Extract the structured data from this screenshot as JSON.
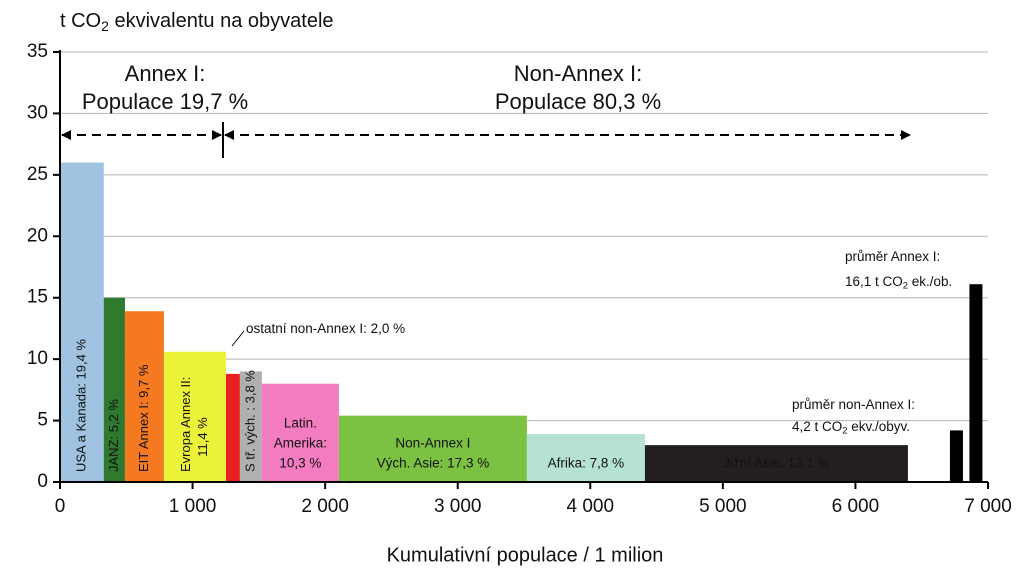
{
  "chart_data": {
    "type": "variwidth-bar",
    "title": [
      {
        "text": "t CO"
      },
      {
        "sub": "2"
      },
      {
        "text": " ekvivalentu na obyvatele"
      }
    ],
    "x_label": "Kumulativní populace / 1 milion",
    "xlim": [
      0,
      7000
    ],
    "ylim": [
      0,
      35
    ],
    "xticks": [
      0,
      {
        "value": 1000,
        "label": "1 000"
      },
      {
        "value": 2000,
        "label": "2 000"
      },
      {
        "value": 3000,
        "label": "3 000"
      },
      {
        "value": 4000,
        "label": "4 000"
      },
      {
        "value": 5000,
        "label": "5 000"
      },
      {
        "value": 6000,
        "label": "6 000"
      },
      {
        "value": 7000,
        "label": "7 000"
      }
    ],
    "yticks": [
      0,
      5,
      10,
      15,
      20,
      25,
      30,
      35
    ],
    "grid": true,
    "bars": [
      {
        "label": [
          "USA a Kanada: 19,4 %"
        ],
        "x": [
          0,
          330
        ],
        "value": 26,
        "color": "#9fc3e0",
        "text_color": "#000000"
      },
      {
        "label": [
          "JANZ: 5,2 %"
        ],
        "x": [
          330,
          490
        ],
        "value": 15,
        "color": "#2f7a2f",
        "text_color": "#ffffff"
      },
      {
        "label": [
          "EIT Annex I: 9,7 %"
        ],
        "x": [
          490,
          784
        ],
        "value": 13.9,
        "color": "#f47920",
        "text_color": "#ffffff"
      },
      {
        "label": [
          "Evropa Annex II:",
          "11,4 %"
        ],
        "x": [
          784,
          1252
        ],
        "value": 10.6,
        "color": "#ecf23a",
        "text_color": "#000000"
      },
      {
        "x": [
          1252,
          1357
        ],
        "value": 8.8,
        "color": "#e8201e"
      },
      {
        "label": [
          "S tř. vých. : 3,8 %"
        ],
        "x": [
          1357,
          1523
        ],
        "value": 9,
        "color": "#b0b0b0",
        "text_color": "#000000"
      },
      {
        "label": [
          "Latin.",
          "Amerika:",
          "10,3 %"
        ],
        "x": [
          1523,
          2104
        ],
        "value": 8,
        "color": "#f47cc0",
        "text_color": "#000000"
      },
      {
        "label": [
          "Non-Annex I",
          "Vých. Asie: 17,3 %"
        ],
        "x": [
          2104,
          3522
        ],
        "value": 5.4,
        "color": "#7cc242",
        "text_color": "#000000"
      },
      {
        "label": [
          "Afrika: 7,8 %"
        ],
        "x": [
          3522,
          4412
        ],
        "value": 3.9,
        "color": "#b6e2d6",
        "text_color": "#000000"
      },
      {
        "label": [
          "Jižní Asie: 13,1 %"
        ],
        "x": [
          4412,
          6396
        ],
        "value": 3,
        "color": "#231f20",
        "text_color": "#ffffff"
      },
      {
        "x": [
          6713,
          6811
        ],
        "value": 4.2,
        "color": "#000000"
      },
      {
        "x": [
          6860,
          6958
        ],
        "value": 16.1,
        "color": "#000000"
      }
    ],
    "annotations": [
      [
        {
          "text": "Annex I:"
        }
      ],
      [
        {
          "text": "Populace 19,7 %"
        }
      ],
      [
        {
          "text": "Non-Annex I:"
        }
      ],
      [
        {
          "text": "Populace 80,3 %"
        }
      ],
      [
        {
          "text": "ostatní non-Annex I: 2,0 %"
        }
      ],
      [
        {
          "text": "průměr Annex I:"
        }
      ],
      [
        {
          "text": "16,1 t CO"
        },
        {
          "sub": "2"
        },
        {
          "text": " ek./ob."
        }
      ],
      [
        {
          "text": "průměr non-Annex I:"
        }
      ],
      [
        {
          "text": "4,2 t CO"
        },
        {
          "sub": "2"
        },
        {
          "text": " ekv./obyv."
        }
      ]
    ]
  }
}
